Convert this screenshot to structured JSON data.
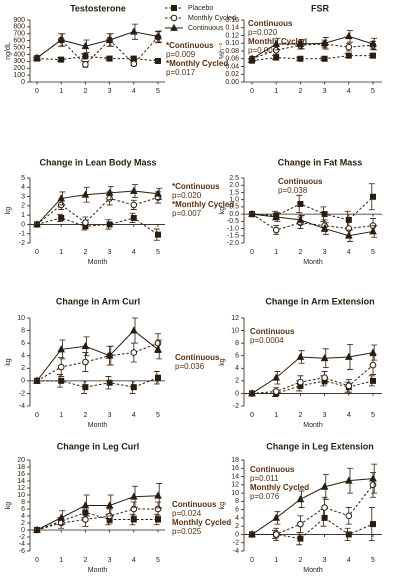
{
  "chart_data": [
    {
      "type": "line",
      "title": "Testosterone",
      "ylabel": "ng/dL",
      "categories": [
        "0",
        "1",
        "2",
        "3",
        "4",
        "5"
      ],
      "ylim": [
        0,
        900
      ],
      "yticks": [
        0,
        100,
        200,
        300,
        400,
        500,
        600,
        700,
        800,
        900
      ],
      "annotations": [
        "*Continuous",
        "p=0.009",
        "*Monthly Cycled",
        "p=0.017"
      ],
      "series": [
        {
          "name": "Placebo",
          "color": "#2b1d10",
          "marker": "square",
          "dash": true,
          "values": [
            340,
            325,
            375,
            340,
            340,
            305
          ],
          "errors": [
            20,
            25,
            40,
            20,
            20,
            20
          ]
        },
        {
          "name": "Monthly Cycled",
          "color": "#2b1d10",
          "marker": "circle",
          "dash": true,
          "values": [
            350,
            610,
            255,
            610,
            265,
            650
          ],
          "errors": [
            30,
            90,
            40,
            90,
            30,
            80
          ]
        },
        {
          "name": "Continuous",
          "color": "#2b1d10",
          "marker": "triangle",
          "dash": false,
          "values": [
            350,
            610,
            520,
            610,
            730,
            660
          ],
          "errors": [
            30,
            90,
            90,
            90,
            110,
            80
          ]
        }
      ]
    },
    {
      "type": "line",
      "title": "FSR",
      "ylabel": "%h⁻¹",
      "categories": [
        "0",
        "1",
        "2",
        "3",
        "4",
        "5"
      ],
      "ylim": [
        0,
        0.16
      ],
      "yticks": [
        {
          "value": 0,
          "label": "0.00"
        },
        {
          "value": 0.02,
          "label": "0.02"
        },
        {
          "value": 0.04,
          "label": "0.04"
        },
        {
          "value": 0.06,
          "label": "0.06"
        },
        {
          "value": 0.08,
          "label": "0.08"
        },
        {
          "value": 0.1,
          "label": "0.10"
        },
        {
          "value": 0.12,
          "label": "0.12"
        },
        {
          "value": 0.14,
          "label": "0.14"
        },
        {
          "value": 0.16,
          "label": "0.16"
        }
      ],
      "annotations": [
        "Continuous",
        "p=0.020",
        "Monthly Cycled",
        "p=0.004"
      ],
      "series": [
        {
          "color": "#2b1d10",
          "marker": "square",
          "dash": true,
          "values": [
            0.055,
            0.063,
            0.06,
            0.06,
            0.068,
            0.068
          ],
          "errors": [
            0.005,
            0.005,
            0.004,
            0.004,
            0.005,
            0.005
          ]
        },
        {
          "color": "#2b1d10",
          "marker": "circle",
          "dash": true,
          "values": [
            0.06,
            0.082,
            0.095,
            0.098,
            0.09,
            0.095
          ],
          "errors": [
            0.005,
            0.01,
            0.01,
            0.01,
            0.01,
            0.01
          ]
        },
        {
          "color": "#2b1d10",
          "marker": "triangle",
          "dash": false,
          "values": [
            0.06,
            0.098,
            0.098,
            0.1,
            0.118,
            0.098
          ],
          "errors": [
            0.005,
            0.015,
            0.012,
            0.015,
            0.015,
            0.015
          ]
        }
      ]
    },
    {
      "type": "line",
      "title": "Change in Lean Body Mass",
      "ylabel": "kg",
      "xlabel": "Month",
      "categories": [
        "0",
        "1",
        "2",
        "3",
        "4",
        "5"
      ],
      "ylim": [
        -2,
        5
      ],
      "yticks": [
        -2,
        -1,
        0,
        1,
        2,
        3,
        4,
        5
      ],
      "annotations": [
        "*Continuous",
        "p=0.020",
        "*Monthly Cycled",
        "p=0.007"
      ],
      "series": [
        {
          "color": "#2b1d10",
          "marker": "square",
          "dash": true,
          "values": [
            0,
            0.7,
            -0.2,
            0,
            0.7,
            -1.1
          ],
          "errors": [
            0,
            0.4,
            0.4,
            0.5,
            0.5,
            0.6
          ]
        },
        {
          "color": "#2b1d10",
          "marker": "circle",
          "dash": true,
          "values": [
            0,
            2.1,
            0.2,
            2.8,
            2.1,
            2.9
          ],
          "errors": [
            0,
            0.5,
            0.6,
            0.7,
            0.5,
            0.6
          ]
        },
        {
          "color": "#2b1d10",
          "marker": "triangle",
          "dash": false,
          "values": [
            0,
            2.8,
            3.2,
            3.4,
            3.6,
            3.3
          ],
          "errors": [
            0,
            0.7,
            0.8,
            0.7,
            0.7,
            0.6
          ]
        }
      ]
    },
    {
      "type": "line",
      "title": "Change in Fat Mass",
      "ylabel": "kg",
      "xlabel": "Month",
      "categories": [
        "0",
        "1",
        "2",
        "3",
        "4",
        "5"
      ],
      "ylim": [
        -2,
        2.5
      ],
      "yticks": [
        {
          "value": -2,
          "label": "-2.0"
        },
        -1.5,
        {
          "value": -1,
          "label": "-1.0"
        },
        -0.5,
        {
          "value": 0,
          "label": "0.0"
        },
        0.5,
        {
          "value": 1,
          "label": "1.0"
        },
        1.5,
        {
          "value": 2,
          "label": "2.0"
        },
        2.5
      ],
      "annotations": [
        "Continuous",
        "p=0.038"
      ],
      "series": [
        {
          "color": "#2b1d10",
          "marker": "square",
          "dash": true,
          "values": [
            0,
            -0.1,
            0.7,
            0,
            -0.4,
            1.2
          ],
          "errors": [
            0,
            0.3,
            0.6,
            0.5,
            0.6,
            0.9
          ]
        },
        {
          "color": "#2b1d10",
          "marker": "circle",
          "dash": true,
          "values": [
            0,
            -1.1,
            -0.6,
            -0.8,
            -1.0,
            -0.8
          ],
          "errors": [
            0,
            0.3,
            0.4,
            0.4,
            0.5,
            0.5
          ]
        },
        {
          "color": "#2b1d10",
          "marker": "triangle",
          "dash": false,
          "values": [
            0,
            -0.2,
            -0.4,
            -1.0,
            -1.5,
            -1.2
          ],
          "errors": [
            0,
            0.3,
            0.3,
            0.4,
            0.4,
            0.4
          ]
        }
      ]
    },
    {
      "type": "line",
      "title": "Change in Arm Curl",
      "ylabel": "kg",
      "xlabel": "Month",
      "categories": [
        "0",
        "1",
        "2",
        "3",
        "4",
        "5"
      ],
      "ylim": [
        -4,
        10
      ],
      "yticks": [
        -4,
        -2,
        0,
        2,
        4,
        6,
        8,
        10
      ],
      "annotations": [
        "Continuous",
        "p=0.036"
      ],
      "series": [
        {
          "color": "#2b1d10",
          "marker": "square",
          "dash": true,
          "values": [
            0,
            0,
            -1,
            -0.3,
            -1,
            0.5
          ],
          "errors": [
            0,
            1,
            1,
            1,
            1,
            1
          ]
        },
        {
          "color": "#2b1d10",
          "marker": "circle",
          "dash": true,
          "values": [
            0,
            2.2,
            3,
            4,
            4.5,
            6
          ],
          "errors": [
            0,
            1.5,
            1.5,
            1.5,
            1.5,
            1.5
          ]
        },
        {
          "color": "#2b1d10",
          "marker": "triangle",
          "dash": false,
          "values": [
            0,
            5,
            5.5,
            4,
            8,
            5
          ],
          "errors": [
            0,
            1.5,
            1.5,
            1.5,
            2,
            1.5
          ]
        }
      ]
    },
    {
      "type": "line",
      "title": "Change in Arm Extension",
      "ylabel": "kg",
      "xlabel": "Month",
      "categories": [
        "0",
        "1",
        "2",
        "3",
        "4",
        "5"
      ],
      "ylim": [
        -2,
        12
      ],
      "yticks": [
        -2,
        0,
        2,
        4,
        6,
        8,
        10,
        12
      ],
      "annotations": [
        "Continuous",
        "p=0.0004"
      ],
      "series": [
        {
          "color": "#2b1d10",
          "marker": "square",
          "dash": true,
          "values": [
            0,
            0,
            1.2,
            2,
            1,
            2
          ],
          "errors": [
            0,
            0.5,
            0.8,
            0.8,
            0.8,
            0.8
          ]
        },
        {
          "color": "#2b1d10",
          "marker": "circle",
          "dash": true,
          "values": [
            0,
            0.3,
            1.8,
            2.5,
            1.2,
            4.5
          ],
          "errors": [
            0,
            0.6,
            1,
            1,
            1,
            1.5
          ]
        },
        {
          "color": "#2b1d10",
          "marker": "triangle",
          "dash": false,
          "values": [
            0,
            2.5,
            5.8,
            5.6,
            5.8,
            6.5
          ],
          "errors": [
            0,
            1,
            1,
            1.5,
            2,
            1.2
          ]
        }
      ]
    },
    {
      "type": "line",
      "title": "Change in Leg Curl",
      "ylabel": "kg",
      "xlabel": "Month",
      "categories": [
        "0",
        "1",
        "2",
        "3",
        "4",
        "5"
      ],
      "ylim": [
        -6,
        20
      ],
      "yticks": [
        -6,
        -4,
        -2,
        0,
        2,
        4,
        6,
        8,
        10,
        12,
        14,
        16,
        18,
        20
      ],
      "annotations": [
        "Continuous",
        "p=0.024",
        "Monthly Cycled",
        "p=0.025"
      ],
      "series": [
        {
          "color": "#2b1d10",
          "marker": "square",
          "dash": true,
          "values": [
            0,
            2.5,
            5,
            3,
            3,
            3
          ],
          "errors": [
            0,
            1,
            1.5,
            1.5,
            1.5,
            1.5
          ]
        },
        {
          "color": "#2b1d10",
          "marker": "circle",
          "dash": true,
          "values": [
            0,
            2,
            3,
            4,
            6,
            6
          ],
          "errors": [
            0,
            1.5,
            2,
            2,
            2,
            2
          ]
        },
        {
          "color": "#2b1d10",
          "marker": "triangle",
          "dash": false,
          "values": [
            0,
            3.5,
            7,
            7,
            9.5,
            9.8
          ],
          "errors": [
            0,
            2,
            3,
            3,
            3,
            3.5
          ]
        }
      ]
    },
    {
      "type": "line",
      "title": "Change in Leg Extension",
      "ylabel": "kg",
      "xlabel": "Month",
      "categories": [
        "0",
        "1",
        "2",
        "3",
        "4",
        "5"
      ],
      "ylim": [
        -4,
        18
      ],
      "yticks": [
        -4,
        -2,
        0,
        2,
        4,
        6,
        8,
        10,
        12,
        14,
        16,
        18
      ],
      "annotations": [
        "Continuous",
        "p=0.011",
        "Monthly Cycled",
        "p=0.076"
      ],
      "series": [
        {
          "color": "#2b1d10",
          "marker": "square",
          "dash": true,
          "values": [
            0,
            0,
            -1,
            4,
            0,
            2.5
          ],
          "errors": [
            0,
            1,
            1.5,
            2,
            1.5,
            4
          ]
        },
        {
          "color": "#2b1d10",
          "marker": "circle",
          "dash": true,
          "values": [
            0,
            0,
            2.5,
            6.5,
            4.5,
            12
          ],
          "errors": [
            0,
            1.5,
            2,
            2.5,
            2,
            3
          ]
        },
        {
          "color": "#2b1d10",
          "marker": "triangle",
          "dash": false,
          "values": [
            0,
            4,
            8.5,
            11.5,
            13,
            13.5
          ],
          "errors": [
            0,
            1.5,
            2,
            3,
            3,
            3.5
          ]
        }
      ]
    }
  ]
}
